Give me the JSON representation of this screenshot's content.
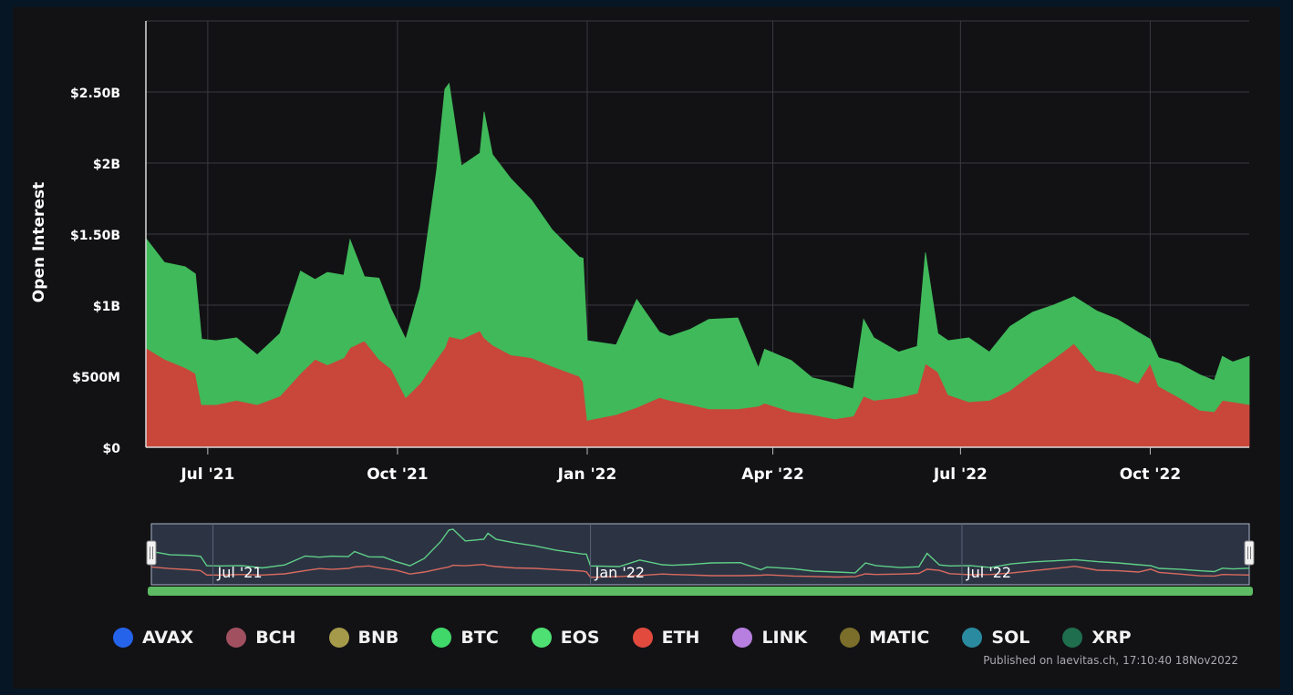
{
  "colors": {
    "background": "#121215",
    "grid": "#3a3a40",
    "btc": "#40b95a",
    "eth": "#c8473a",
    "navigator_bg": "#2c3444",
    "navigator_scroll": "#5dbb63"
  },
  "chart_data": {
    "type": "area",
    "stacked": true,
    "ylabel": "Open Interest",
    "ylim": [
      0,
      3000000000
    ],
    "y_ticks": [
      {
        "label": "$0",
        "value": 0
      },
      {
        "label": "$500M",
        "value": 500000000
      },
      {
        "label": "$1B",
        "value": 1000000000
      },
      {
        "label": "$1.50B",
        "value": 1500000000
      },
      {
        "label": "$2B",
        "value": 2000000000
      },
      {
        "label": "$2.50B",
        "value": 2500000000
      }
    ],
    "xlim": [
      "2021-06-01",
      "2022-11-18"
    ],
    "x_ticks": [
      {
        "label": "Jul '21",
        "date": "2021-07-01"
      },
      {
        "label": "Oct '21",
        "date": "2021-10-01"
      },
      {
        "label": "Jan '22",
        "date": "2022-01-01"
      },
      {
        "label": "Apr '22",
        "date": "2022-04-01"
      },
      {
        "label": "Jul '22",
        "date": "2022-07-01"
      },
      {
        "label": "Oct '22",
        "date": "2022-10-01"
      }
    ],
    "navigator_labels": [
      {
        "label": "Jul '21",
        "date": "2021-07-01"
      },
      {
        "label": "Jan '22",
        "date": "2022-01-01"
      },
      {
        "label": "Jul '22",
        "date": "2022-07-01"
      }
    ],
    "x": [
      "2021-06-01",
      "2021-06-10",
      "2021-06-20",
      "2021-06-25",
      "2021-06-28",
      "2021-07-05",
      "2021-07-15",
      "2021-07-25",
      "2021-08-05",
      "2021-08-15",
      "2021-08-22",
      "2021-08-28",
      "2021-09-05",
      "2021-09-08",
      "2021-09-15",
      "2021-09-22",
      "2021-09-28",
      "2021-10-05",
      "2021-10-12",
      "2021-10-20",
      "2021-10-24",
      "2021-10-26",
      "2021-11-01",
      "2021-11-10",
      "2021-11-12",
      "2021-11-16",
      "2021-11-25",
      "2021-12-05",
      "2021-12-15",
      "2021-12-28",
      "2021-12-30",
      "2022-01-01",
      "2022-01-15",
      "2022-01-25",
      "2022-02-05",
      "2022-02-10",
      "2022-02-20",
      "2022-03-01",
      "2022-03-15",
      "2022-03-25",
      "2022-03-28",
      "2022-04-10",
      "2022-04-20",
      "2022-05-01",
      "2022-05-10",
      "2022-05-15",
      "2022-05-20",
      "2022-06-01",
      "2022-06-10",
      "2022-06-14",
      "2022-06-20",
      "2022-06-25",
      "2022-07-05",
      "2022-07-15",
      "2022-07-25",
      "2022-08-05",
      "2022-08-15",
      "2022-08-25",
      "2022-09-05",
      "2022-09-15",
      "2022-09-25",
      "2022-10-01",
      "2022-10-05",
      "2022-10-15",
      "2022-10-25",
      "2022-11-01",
      "2022-11-05",
      "2022-11-10",
      "2022-11-18"
    ],
    "series": [
      {
        "name": "ETH",
        "color": "#c8473a",
        "values": [
          700000000,
          620000000,
          560000000,
          520000000,
          300000000,
          300000000,
          330000000,
          300000000,
          360000000,
          520000000,
          620000000,
          580000000,
          630000000,
          700000000,
          750000000,
          620000000,
          550000000,
          350000000,
          450000000,
          620000000,
          700000000,
          780000000,
          760000000,
          820000000,
          770000000,
          720000000,
          650000000,
          630000000,
          570000000,
          500000000,
          460000000,
          190000000,
          230000000,
          280000000,
          350000000,
          330000000,
          300000000,
          270000000,
          270000000,
          290000000,
          310000000,
          250000000,
          230000000,
          200000000,
          220000000,
          360000000,
          330000000,
          350000000,
          380000000,
          590000000,
          530000000,
          370000000,
          320000000,
          330000000,
          400000000,
          520000000,
          620000000,
          730000000,
          540000000,
          510000000,
          450000000,
          590000000,
          430000000,
          350000000,
          260000000,
          250000000,
          330000000,
          320000000,
          300000000
        ]
      },
      {
        "name": "BTC",
        "color": "#40b95a",
        "values": [
          770000000,
          680000000,
          710000000,
          700000000,
          460000000,
          450000000,
          440000000,
          350000000,
          440000000,
          720000000,
          560000000,
          650000000,
          580000000,
          760000000,
          450000000,
          570000000,
          420000000,
          410000000,
          670000000,
          1330000000,
          1820000000,
          1780000000,
          1220000000,
          1250000000,
          1590000000,
          1340000000,
          1240000000,
          1110000000,
          960000000,
          840000000,
          870000000,
          560000000,
          490000000,
          760000000,
          460000000,
          450000000,
          530000000,
          630000000,
          640000000,
          270000000,
          380000000,
          360000000,
          260000000,
          250000000,
          190000000,
          540000000,
          440000000,
          320000000,
          330000000,
          780000000,
          270000000,
          380000000,
          450000000,
          340000000,
          450000000,
          430000000,
          380000000,
          330000000,
          420000000,
          390000000,
          360000000,
          170000000,
          200000000,
          240000000,
          250000000,
          220000000,
          310000000,
          280000000,
          340000000
        ]
      }
    ]
  },
  "legend": {
    "items": [
      {
        "name": "AVAX",
        "color": "#2563eb"
      },
      {
        "name": "BCH",
        "color": "#a1505f"
      },
      {
        "name": "BNB",
        "color": "#a59a4a"
      },
      {
        "name": "BTC",
        "color": "#41d86a"
      },
      {
        "name": "EOS",
        "color": "#4ee072"
      },
      {
        "name": "ETH",
        "color": "#e24a3e"
      },
      {
        "name": "LINK",
        "color": "#b77fe0"
      },
      {
        "name": "MATIC",
        "color": "#7a6e2a"
      },
      {
        "name": "SOL",
        "color": "#2a8aa0"
      },
      {
        "name": "XRP",
        "color": "#1f6e4e"
      }
    ]
  },
  "credits": "Published on laevitas.ch, 17:10:40 18Nov2022"
}
